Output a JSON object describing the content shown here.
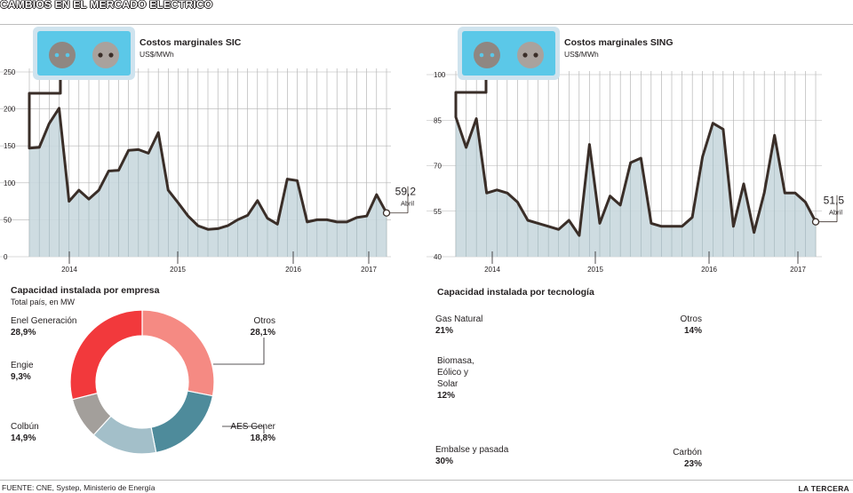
{
  "title": "CAMBIOS EN EL MERCADO ELÉCTRICO",
  "source": "FUENTE: CNE, Systep, Ministerio de Energía",
  "brand": "LA TERCERA",
  "colors": {
    "area": "#c9d8de",
    "line": "#3a2e28",
    "grid": "#9a9a9a",
    "plug_bg": "#5bc8e8",
    "plug_frame": "#cfe3ee"
  },
  "chart_data": [
    {
      "type": "area",
      "title": "Costos marginales SIC",
      "unit": "US$/MWh",
      "yticks": [
        "0",
        "50",
        "100",
        "150",
        "200",
        "250"
      ],
      "ylim": [
        0,
        250
      ],
      "xticks": [
        "2014",
        "2015",
        "2016",
        "2017"
      ],
      "values": [
        147,
        148,
        180,
        201,
        75,
        90,
        78,
        90,
        116,
        117,
        144,
        145,
        140,
        168,
        90,
        73,
        55,
        42,
        37,
        38,
        42,
        50,
        56,
        76,
        52,
        44,
        105,
        103,
        47,
        50,
        50,
        47,
        47,
        53,
        55,
        84,
        59.2
      ],
      "last_label": "59,2",
      "last_sublabel": "Abril"
    },
    {
      "type": "area",
      "title": "Costos marginales SING",
      "unit": "US$/MWh",
      "yticks": [
        "40",
        "55",
        "70",
        "85",
        "100"
      ],
      "ylim": [
        40,
        100
      ],
      "xticks": [
        "2014",
        "2015",
        "2016",
        "2017"
      ],
      "values": [
        86,
        76,
        85.5,
        61,
        62,
        61,
        58,
        52,
        51,
        50,
        49,
        52,
        47,
        77,
        51,
        60,
        57,
        71,
        72.5,
        51,
        50,
        50,
        50,
        53,
        73,
        84,
        82,
        50,
        64,
        48,
        61,
        80,
        61,
        61,
        58,
        51.5
      ],
      "last_label": "51,5",
      "last_sublabel": "Abril"
    },
    {
      "type": "pie",
      "title": "Capacidad instalada por empresa",
      "subtitle": "Total país, en MW",
      "slices": [
        {
          "name": "Otros",
          "pct": "28,1%",
          "value": 28.1,
          "color": "#f58a83"
        },
        {
          "name": "AES Gener",
          "pct": "18,8%",
          "value": 18.8,
          "color": "#4e8b9b"
        },
        {
          "name": "Colbún",
          "pct": "14,9%",
          "value": 14.9,
          "color": "#a3bfc9"
        },
        {
          "name": "Engie",
          "pct": "9,3%",
          "value": 9.3,
          "color": "#a39f9b"
        },
        {
          "name": "Enel Generación",
          "pct": "28,9%",
          "value": 28.9,
          "color": "#f2393c"
        }
      ]
    },
    {
      "type": "pie",
      "title": "Capacidad instalada por tecnología",
      "slices": [
        {
          "name": "Otros",
          "pct": "14%",
          "value": 14,
          "color": "#f58a83"
        },
        {
          "name": "Carbón",
          "pct": "23%",
          "value": 23,
          "color": "#4e8b9b"
        },
        {
          "name": "Embalse y pasada",
          "pct": "30%",
          "value": 30,
          "color": "#a3bfc9"
        },
        {
          "name": "Biomasa, Eólico y Solar",
          "pct": "12%",
          "value": 12,
          "color": "#a39f9b"
        },
        {
          "name": "Gas Natural",
          "pct": "21%",
          "value": 21,
          "color": "#f2393c"
        }
      ]
    }
  ],
  "donut_labels": {
    "empresa": {
      "enel": {
        "name": "Enel Generación",
        "pct": "28,9%"
      },
      "engie": {
        "name": "Engie",
        "pct": "9,3%"
      },
      "colbun": {
        "name": "Colbún",
        "pct": "14,9%"
      },
      "otros": {
        "name": "Otros",
        "pct": "28,1%"
      },
      "aes": {
        "name": "AES Gener",
        "pct": "18,8%"
      }
    },
    "tecnologia": {
      "gas": {
        "name": "Gas Natural",
        "pct": "21%"
      },
      "bio1": "Biomasa,",
      "bio2": "Eólico y",
      "bio3": "Solar",
      "bio_pct": "12%",
      "embalse": {
        "name": "Embalse y pasada",
        "pct": "30%"
      },
      "otros": {
        "name": "Otros",
        "pct": "14%"
      },
      "carbon": {
        "name": "Carbón",
        "pct": "23%"
      }
    }
  }
}
